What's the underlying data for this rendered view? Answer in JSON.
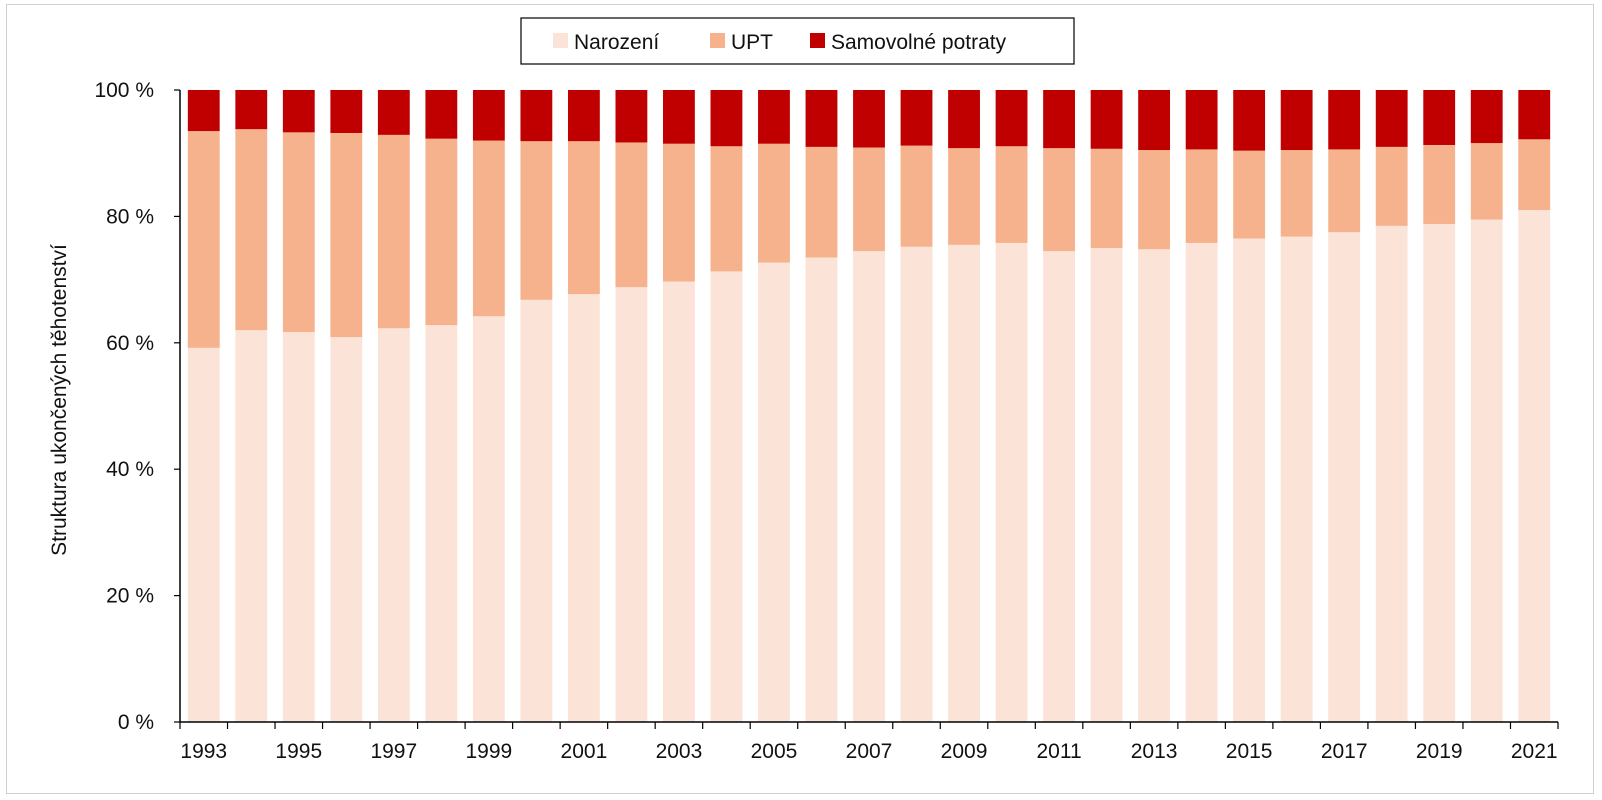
{
  "chart_data": {
    "type": "bar",
    "stacked": true,
    "ylabel": "Struktura ukončených těhotenství",
    "y_ticks": [
      "0 %",
      "20 %",
      "40 %",
      "60 %",
      "80 %",
      "100 %"
    ],
    "ylim": [
      0,
      100
    ],
    "legend_position": "top-center",
    "categories": [
      1993,
      1994,
      1995,
      1996,
      1997,
      1998,
      1999,
      2000,
      2001,
      2002,
      2003,
      2004,
      2005,
      2006,
      2007,
      2008,
      2009,
      2010,
      2011,
      2012,
      2013,
      2014,
      2015,
      2016,
      2017,
      2018,
      2019,
      2020,
      2021
    ],
    "x_tick_labels": [
      "1993",
      "1995",
      "1997",
      "1999",
      "2001",
      "2003",
      "2005",
      "2007",
      "2009",
      "2011",
      "2013",
      "2015",
      "2017",
      "2019",
      "2021"
    ],
    "series": [
      {
        "name": "Narození",
        "color": "#fbe3d8",
        "values": [
          59.2,
          62.0,
          61.7,
          60.9,
          62.3,
          62.8,
          64.2,
          66.8,
          67.7,
          68.8,
          69.7,
          71.3,
          72.7,
          73.5,
          74.5,
          75.2,
          75.5,
          75.8,
          74.5,
          75.0,
          74.8,
          75.8,
          76.5,
          76.8,
          77.5,
          78.5,
          78.8,
          79.5,
          81.0
        ]
      },
      {
        "name": "UPT",
        "color": "#f5b28c",
        "values": [
          34.3,
          31.8,
          31.6,
          32.3,
          30.6,
          29.5,
          27.8,
          25.1,
          24.2,
          22.9,
          21.8,
          19.8,
          18.8,
          17.5,
          16.4,
          16.0,
          15.3,
          15.3,
          16.3,
          15.7,
          15.7,
          14.8,
          13.9,
          13.7,
          13.1,
          12.5,
          12.5,
          12.1,
          11.2
        ]
      },
      {
        "name": "Samovolné potraty",
        "color": "#c00000",
        "values": [
          6.5,
          6.2,
          6.7,
          6.8,
          7.1,
          7.7,
          8.0,
          8.1,
          8.1,
          8.3,
          8.5,
          8.9,
          8.5,
          9.0,
          9.1,
          8.8,
          9.2,
          8.9,
          9.2,
          9.3,
          9.5,
          9.4,
          9.6,
          9.5,
          9.4,
          9.0,
          8.7,
          8.4,
          7.8
        ]
      }
    ]
  }
}
